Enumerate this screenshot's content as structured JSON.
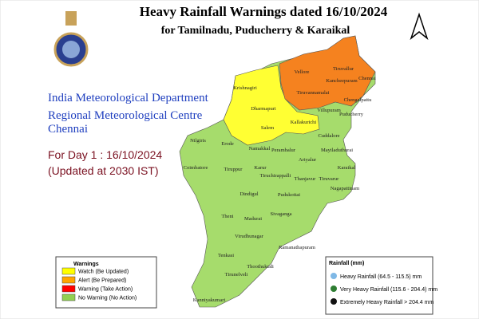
{
  "header": {
    "title": "Heavy Rainfall Warnings dated 16/10/2024",
    "subtitle": "for Tamilnadu, Puducherry & Karaikal"
  },
  "org": [
    "India Meteorological Department",
    "Regional Meteorological Centre",
    "Chennai"
  ],
  "forecast": {
    "day": "For Day 1 : 16/10/2024",
    "updated": "(Updated at 2030 IST)"
  },
  "warnings": {
    "title": "Warnings",
    "items": [
      {
        "label": "Watch (Be Updated)",
        "color": "#ffff00"
      },
      {
        "label": "Alert (Be Prepared)",
        "color": "#ffa500"
      },
      {
        "label": "Warning (Take Action)",
        "color": "#ff0000"
      },
      {
        "label": "No Warning (No Action)",
        "color": "#92d050"
      }
    ]
  },
  "rainfall": {
    "title": "Rainfall (mm)",
    "items": [
      {
        "label": "Heavy Rainfall (64.5 - 115.5) mm"
      },
      {
        "label": "Very Heavy Rainfall (115.6 - 204.4) mm"
      },
      {
        "label": "Extremely Heavy Rainfall > 204.4 mm"
      }
    ]
  },
  "districts": [
    "Tiruvallur",
    "Chennai",
    "Vellore",
    "Kancheepuram",
    "Chengalpattu",
    "Tiruvannamalai",
    "Krishnagiri",
    "Dharmapuri",
    "Salem",
    "Kallakurichi",
    "Villupuram",
    "Puducherry",
    "Cuddalore",
    "Nilgiris",
    "Erode",
    "Namakkal",
    "Perambalur",
    "Ariyalur",
    "Mayiladuthurai",
    "Karaikal",
    "Coimbatore",
    "Tiruppur",
    "Karur",
    "Tiruchirappalli",
    "Thanjavur",
    "Tiruvarur",
    "Nagapattinam",
    "Dindigul",
    "Pudukottai",
    "Theni",
    "Madurai",
    "Sivaganga",
    "Virudhunagar",
    "Ramanathapuram",
    "Tenkasi",
    "Thoothukudi",
    "Tirunelveli",
    "Kanniyakumari"
  ]
}
